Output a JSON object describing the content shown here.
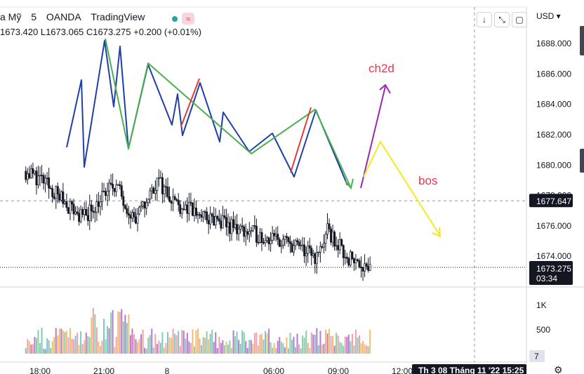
{
  "header": {
    "symbol_fragment": "a Mỹ",
    "interval": "5",
    "broker": "OANDA",
    "platform": "TradingView",
    "wave_icon": "≈",
    "ohlc_line": "1673.420  L1673.065  C1673.275  +0.200 (+0.01%)"
  },
  "toolbar": {
    "currency": "USD",
    "arrow_down_glyph": "↓",
    "collapse_glyph": "⤡",
    "maximize_glyph": "▢"
  },
  "price_axis": {
    "ticks": [
      "1688.000",
      "1686.000",
      "1684.000",
      "1682.000",
      "1680.000",
      "1678.000",
      "1676.000",
      "1674.000"
    ],
    "crosshair_price": "1677.647",
    "last_price": "1673.275",
    "countdown": "03:34"
  },
  "volume_axis": {
    "ticks": [
      "1K",
      "500"
    ],
    "badge": "7"
  },
  "time_axis": {
    "ticks": [
      "18:00",
      "21:00",
      "8",
      "06:00",
      "09:00",
      "12:00"
    ],
    "crosshair_label": "Th 3 08 Tháng 11 '22  15:25"
  },
  "annotations": {
    "ch2d": "ch2d",
    "bos": "bos"
  },
  "colors": {
    "blue_path": "#1e3fa8",
    "green_path": "#4caf50",
    "red_path": "#e53935",
    "purple_arrow": "#9c27b0",
    "yellow_arrow": "#f7e81e",
    "annotation_text": "#e53950",
    "vol_green": "#8ad0a4",
    "vol_red": "#f2a0ac",
    "vol_orange": "#f2be6e",
    "vol_purple": "#b27bd0",
    "vol_teal": "#7fc8c0"
  },
  "chart_data": {
    "type": "candlestick",
    "instrument_interval": "5",
    "y_range": [
      1671,
      1689
    ],
    "x_labels": [
      "18:00",
      "21:00",
      "8",
      "06:00",
      "09:00",
      "12:00"
    ],
    "price_key_points": [
      {
        "time": "17:20",
        "price": 1679.6
      },
      {
        "time": "18:00",
        "price": 1679.1
      },
      {
        "time": "19:00",
        "price": 1677.8
      },
      {
        "time": "20:00",
        "price": 1676.5
      },
      {
        "time": "21:00",
        "price": 1678.0
      },
      {
        "time": "21:30",
        "price": 1678.8
      },
      {
        "time": "22:30",
        "price": 1676.3
      },
      {
        "time": "23:30",
        "price": 1679.0
      },
      {
        "time": "00:30",
        "price": 1677.4
      },
      {
        "time": "02:00",
        "price": 1676.4
      },
      {
        "time": "04:00",
        "price": 1675.5
      },
      {
        "time": "06:00",
        "price": 1674.7
      },
      {
        "time": "07:00",
        "price": 1673.9
      },
      {
        "time": "07:30",
        "price": 1675.6
      },
      {
        "time": "08:30",
        "price": 1673.9
      },
      {
        "time": "09:30",
        "price": 1673.3
      }
    ],
    "horizontal_levels": [
      {
        "price": 1677.647,
        "style": "dashed"
      },
      {
        "price": 1673.275,
        "style": "dotted"
      }
    ],
    "volume": {
      "ticks": [
        "1K",
        "500"
      ],
      "peak": 1000
    }
  }
}
